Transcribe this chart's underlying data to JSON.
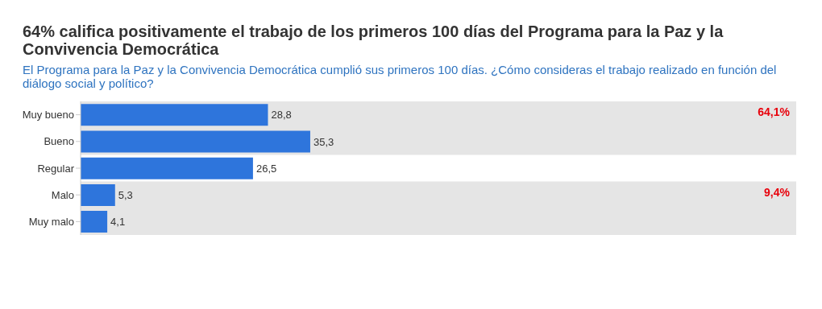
{
  "chart_data": {
    "type": "bar",
    "orientation": "horizontal",
    "title": "64% califica positivamente el trabajo de los primeros 100 días del Programa para la Paz y la Convivencia Democrática",
    "subtitle": "El Programa para la Paz y la Convivencia Democrática cumplió sus primeros 100 días. ¿Cómo consideras el trabajo realizado en función del diálogo social y político?",
    "categories": [
      "Muy bueno",
      "Bueno",
      "Regular",
      "Malo",
      "Muy malo"
    ],
    "values": [
      28.8,
      35.3,
      26.5,
      5.3,
      4.1
    ],
    "value_labels": [
      "28,8",
      "35,3",
      "26,5",
      "5,3",
      "4,1"
    ],
    "color": "#2e75dc",
    "xlim": [
      0,
      110
    ],
    "tick_labels": "y",
    "grid": false,
    "legend": false,
    "bands": [
      {
        "axis": "y",
        "from": "Muy bueno",
        "to": "Bueno",
        "label": "64,1%",
        "color": "#e5e5e5"
      },
      {
        "axis": "y",
        "from": "Malo",
        "to": "Muy malo",
        "label": "9,4%",
        "color": "#e5e5e5"
      }
    ]
  }
}
